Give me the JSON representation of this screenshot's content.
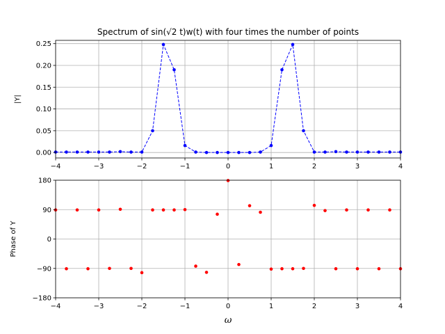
{
  "chart_data": [
    {
      "type": "line",
      "title": "Spectrum of sin(√2 t)w(t) with four times the number of points",
      "xlabel": "",
      "ylabel": "|Y|",
      "xlim": [
        -4,
        4
      ],
      "ylim": [
        -0.0125,
        0.2575
      ],
      "grid": true,
      "xticks": [
        "−4",
        "−3",
        "−2",
        "−1",
        "0",
        "1",
        "2",
        "3",
        "4"
      ],
      "yticks": [
        "0.00",
        "0.05",
        "0.10",
        "0.15",
        "0.20",
        "0.25"
      ],
      "ytick_values": [
        0,
        0.05,
        0.1,
        0.15,
        0.2,
        0.25
      ],
      "color": "#0000ff",
      "linestyle": "dashed",
      "x": [
        -4,
        -3.75,
        -3.5,
        -3.25,
        -3,
        -2.75,
        -2.5,
        -2.25,
        -2,
        -1.75,
        -1.5,
        -1.25,
        -1,
        -0.75,
        -0.5,
        -0.25,
        0,
        0.25,
        0.5,
        0.75,
        1,
        1.25,
        1.5,
        1.75,
        2,
        2.25,
        2.5,
        2.75,
        3,
        3.25,
        3.5,
        3.75,
        4
      ],
      "y": [
        0.001,
        0.001,
        0.001,
        0.001,
        0.001,
        0.001,
        0.002,
        0.001,
        0.001,
        0.05,
        0.248,
        0.19,
        0.016,
        0.001,
        0.0,
        0.0,
        0.0,
        0.0,
        0.0,
        0.001,
        0.016,
        0.19,
        0.248,
        0.05,
        0.001,
        0.001,
        0.002,
        0.001,
        0.001,
        0.001,
        0.001,
        0.001,
        0.001
      ]
    },
    {
      "type": "scatter",
      "title": "",
      "xlabel": "ω",
      "ylabel": "Phase of Y",
      "xlim": [
        -4,
        4
      ],
      "ylim": [
        -180,
        180
      ],
      "grid": true,
      "xticks": [
        "−4",
        "−3",
        "−2",
        "−1",
        "0",
        "1",
        "2",
        "3",
        "4"
      ],
      "yticks": [
        "−180",
        "−90",
        "0",
        "90",
        "180"
      ],
      "ytick_values": [
        -180,
        -90,
        0,
        90,
        180
      ],
      "color": "#ff0000",
      "x": [
        -4,
        -3.75,
        -3.5,
        -3.25,
        -3,
        -2.75,
        -2.5,
        -2.25,
        -2,
        -1.75,
        -1.5,
        -1.25,
        -1,
        -0.75,
        -0.5,
        -0.25,
        0,
        0.25,
        0.5,
        0.75,
        1,
        1.25,
        1.5,
        1.75,
        2,
        2.25,
        2.5,
        2.75,
        3,
        3.25,
        3.5,
        3.75,
        4
      ],
      "y": [
        89,
        -91,
        89,
        -91,
        89,
        -90,
        91,
        -90,
        -103,
        89,
        89,
        89,
        90,
        -83,
        -102,
        76,
        179,
        -78,
        102,
        82,
        -92,
        -91,
        -91,
        -90,
        103,
        87,
        -91,
        89,
        -91,
        89,
        -91,
        89,
        -91
      ]
    }
  ]
}
